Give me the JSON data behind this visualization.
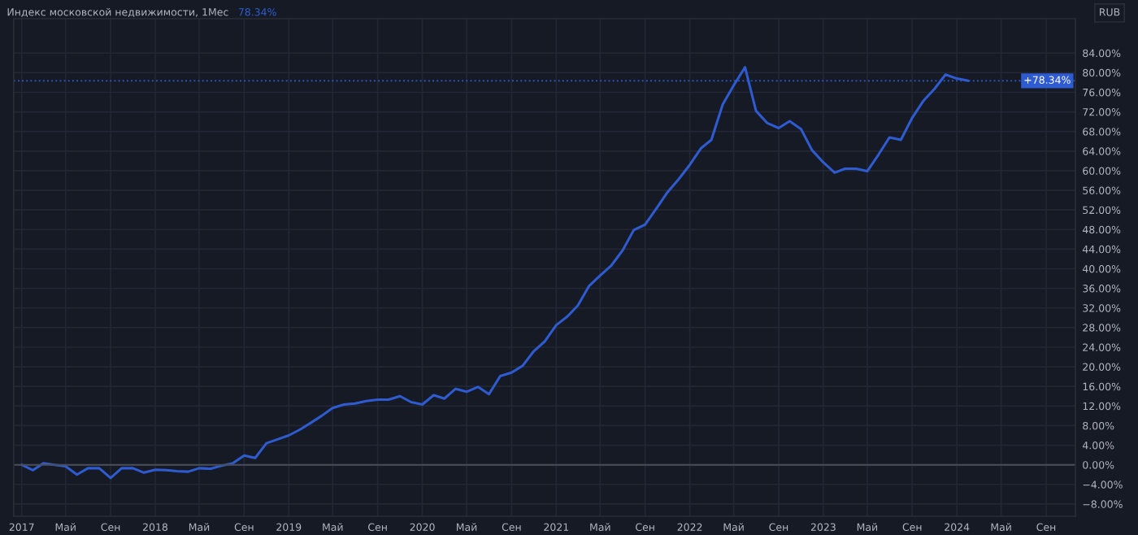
{
  "chart_data": {
    "type": "line",
    "title": "Индекс московской недвижимости, 1Мес",
    "annotations": [
      "78.34%",
      "RUB"
    ],
    "x": [
      "2017-01",
      "2017-02",
      "2017-03",
      "2017-04",
      "2017-05",
      "2017-06",
      "2017-07",
      "2017-08",
      "2017-09",
      "2017-10",
      "2017-11",
      "2017-12",
      "2018-01",
      "2018-02",
      "2018-03",
      "2018-04",
      "2018-05",
      "2018-06",
      "2018-07",
      "2018-08",
      "2018-09",
      "2018-10",
      "2018-11",
      "2018-12",
      "2019-01",
      "2019-02",
      "2019-03",
      "2019-04",
      "2019-05",
      "2019-06",
      "2019-07",
      "2019-08",
      "2019-09",
      "2019-10",
      "2019-11",
      "2019-12",
      "2020-01",
      "2020-02",
      "2020-03",
      "2020-04",
      "2020-05",
      "2020-06",
      "2020-07",
      "2020-08",
      "2020-09",
      "2020-10",
      "2020-11",
      "2020-12",
      "2021-01",
      "2021-02",
      "2021-03",
      "2021-04",
      "2021-05",
      "2021-06",
      "2021-07",
      "2021-08",
      "2021-09",
      "2021-10",
      "2021-11",
      "2021-12",
      "2022-01",
      "2022-02",
      "2022-03",
      "2022-04",
      "2022-05",
      "2022-06",
      "2022-07",
      "2022-08",
      "2022-09",
      "2022-10",
      "2022-11",
      "2022-12",
      "2023-01",
      "2023-02",
      "2023-03",
      "2023-04",
      "2023-05",
      "2023-06",
      "2023-07",
      "2023-08",
      "2023-09",
      "2023-10",
      "2023-11",
      "2023-12",
      "2024-01",
      "2024-02"
    ],
    "series": [
      {
        "color": "#2f5bd0",
        "values": [
          0,
          -1.1,
          0.3,
          0.0,
          -0.3,
          -2.0,
          -0.7,
          -0.7,
          -2.7,
          -0.7,
          -0.7,
          -1.6,
          -1.0,
          -1.1,
          -1.3,
          -1.4,
          -0.7,
          -0.8,
          -0.2,
          0.3,
          1.9,
          1.4,
          4.4,
          5.2,
          6.0,
          7.2,
          8.5,
          10.0,
          11.6,
          12.3,
          12.5,
          13.0,
          13.3,
          13.3,
          14.0,
          12.8,
          12.3,
          14.2,
          13.5,
          15.5,
          14.9,
          15.9,
          14.4,
          18.1,
          18.8,
          20.2,
          23.2,
          25.2,
          28.5,
          30.3,
          32.5,
          36.5,
          38.6,
          40.7,
          43.7,
          47.9,
          49.0,
          52.2,
          55.6,
          58.2,
          61.2,
          64.6,
          66.3,
          73.5,
          77.4,
          81.1,
          72.2,
          69.7,
          68.7,
          70.1,
          68.5,
          64.2,
          61.7,
          59.6,
          60.4,
          60.4,
          59.9,
          63.3,
          66.8,
          66.3,
          70.8,
          74.2,
          76.7,
          79.6,
          78.8,
          78.34
        ]
      }
    ],
    "xlim": [
      "2016-12-10",
      "2024-11-20"
    ],
    "xticks": [
      {
        "value": "2017-01",
        "label": "2017"
      },
      {
        "value": "2017-05",
        "label": "Май"
      },
      {
        "value": "2017-09",
        "label": "Сен"
      },
      {
        "value": "2018-01",
        "label": "2018"
      },
      {
        "value": "2018-05",
        "label": "Май"
      },
      {
        "value": "2018-09",
        "label": "Сен"
      },
      {
        "value": "2019-01",
        "label": "2019"
      },
      {
        "value": "2019-05",
        "label": "Май"
      },
      {
        "value": "2019-09",
        "label": "Сен"
      },
      {
        "value": "2020-01",
        "label": "2020"
      },
      {
        "value": "2020-05",
        "label": "Май"
      },
      {
        "value": "2020-09",
        "label": "Сен"
      },
      {
        "value": "2021-01",
        "label": "2021"
      },
      {
        "value": "2021-05",
        "label": "Май"
      },
      {
        "value": "2021-09",
        "label": "Сен"
      },
      {
        "value": "2022-01",
        "label": "2022"
      },
      {
        "value": "2022-05",
        "label": "Май"
      },
      {
        "value": "2022-09",
        "label": "Сен"
      },
      {
        "value": "2023-01",
        "label": "2023"
      },
      {
        "value": "2023-05",
        "label": "Май"
      },
      {
        "value": "2023-09",
        "label": "Сен"
      },
      {
        "value": "2024-01",
        "label": "2024"
      },
      {
        "value": "2024-05",
        "label": "Май"
      },
      {
        "value": "2024-09",
        "label": "Сен"
      }
    ],
    "ylim": [
      -10.5,
      91
    ],
    "yticks": [
      {
        "value": -8,
        "label": "−8.00%"
      },
      {
        "value": -4,
        "label": "−4.00%"
      },
      {
        "value": 0,
        "label": "0.00%"
      },
      {
        "value": 4,
        "label": "4.00%"
      },
      {
        "value": 8,
        "label": "8.00%"
      },
      {
        "value": 12,
        "label": "12.00%"
      },
      {
        "value": 16,
        "label": "16.00%"
      },
      {
        "value": 20,
        "label": "20.00%"
      },
      {
        "value": 24,
        "label": "24.00%"
      },
      {
        "value": 28,
        "label": "28.00%"
      },
      {
        "value": 32,
        "label": "32.00%"
      },
      {
        "value": 36,
        "label": "36.00%"
      },
      {
        "value": 40,
        "label": "40.00%"
      },
      {
        "value": 44,
        "label": "44.00%"
      },
      {
        "value": 48,
        "label": "48.00%"
      },
      {
        "value": 52,
        "label": "52.00%"
      },
      {
        "value": 56,
        "label": "56.00%"
      },
      {
        "value": 60,
        "label": "60.00%"
      },
      {
        "value": 64,
        "label": "64.00%"
      },
      {
        "value": 68,
        "label": "68.00%"
      },
      {
        "value": 72,
        "label": "72.00%"
      },
      {
        "value": 76,
        "label": "76.00%"
      },
      {
        "value": 80,
        "label": "80.00%"
      },
      {
        "value": 84,
        "label": "84.00%"
      }
    ],
    "ref_lines": [
      {
        "axis": "y",
        "value": 0,
        "color": "#4a4e58"
      },
      {
        "axis": "y",
        "value": 78.34,
        "label": "+78.34%",
        "color": "#2f5bd0",
        "line_style": "dotted"
      }
    ],
    "grid": true,
    "legend": false,
    "marker": "none",
    "line_style": "solid"
  }
}
